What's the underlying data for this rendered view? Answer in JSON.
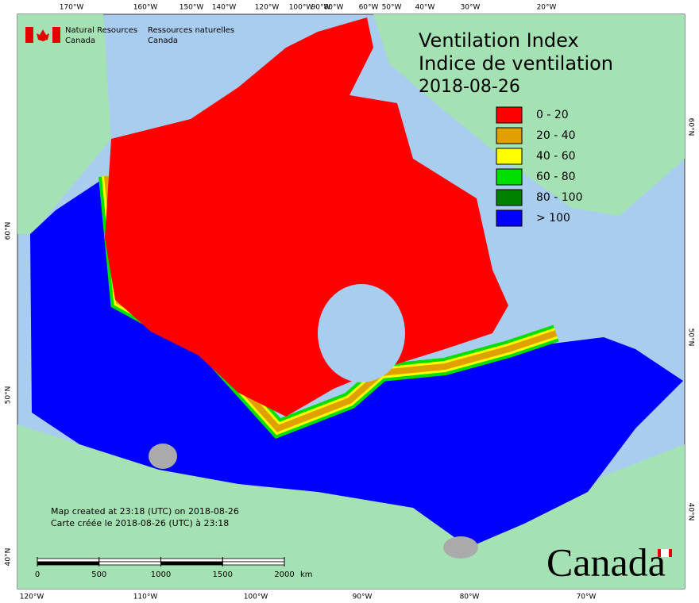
{
  "header": {
    "title": "Ventilation Index",
    "title_fr": "Indice de ventilation",
    "date": "2018-08-26"
  },
  "agency": {
    "en": [
      "Natural Resources",
      "Canada"
    ],
    "fr": [
      "Ressources naturelles",
      "Canada"
    ]
  },
  "legend": [
    {
      "label": "0 - 20",
      "color": "#ff0000"
    },
    {
      "label": "20 - 40",
      "color": "#e0a000"
    },
    {
      "label": "40 - 60",
      "color": "#ffff00"
    },
    {
      "label": "60 - 80",
      "color": "#00e000"
    },
    {
      "label": "80 - 100",
      "color": "#008000"
    },
    {
      "label": "> 100",
      "color": "#0000ff"
    }
  ],
  "graticule": {
    "top": [
      "170°W",
      "160°W",
      "150°W",
      "140°W",
      "120°W",
      "100°W",
      "90°W",
      "80°W",
      "60°W",
      "50°W",
      "40°W",
      "30°W",
      "20°W"
    ],
    "bottom": [
      "120°W",
      "110°W",
      "100°W",
      "90°W",
      "80°W",
      "70°W"
    ],
    "left": [
      "60°N",
      "50°N",
      "40°N"
    ],
    "right": [
      "60°N",
      "50°N",
      "40°N"
    ]
  },
  "notes": [
    "Map created at 23:18 (UTC) on 2018-08-26",
    "Carte créée le 2018-08-26 (UTC) à 23:18"
  ],
  "scale_bar": {
    "ticks": [
      0,
      500,
      1000,
      1500,
      2000
    ],
    "unit": "km"
  },
  "wordmark": "Canada"
}
